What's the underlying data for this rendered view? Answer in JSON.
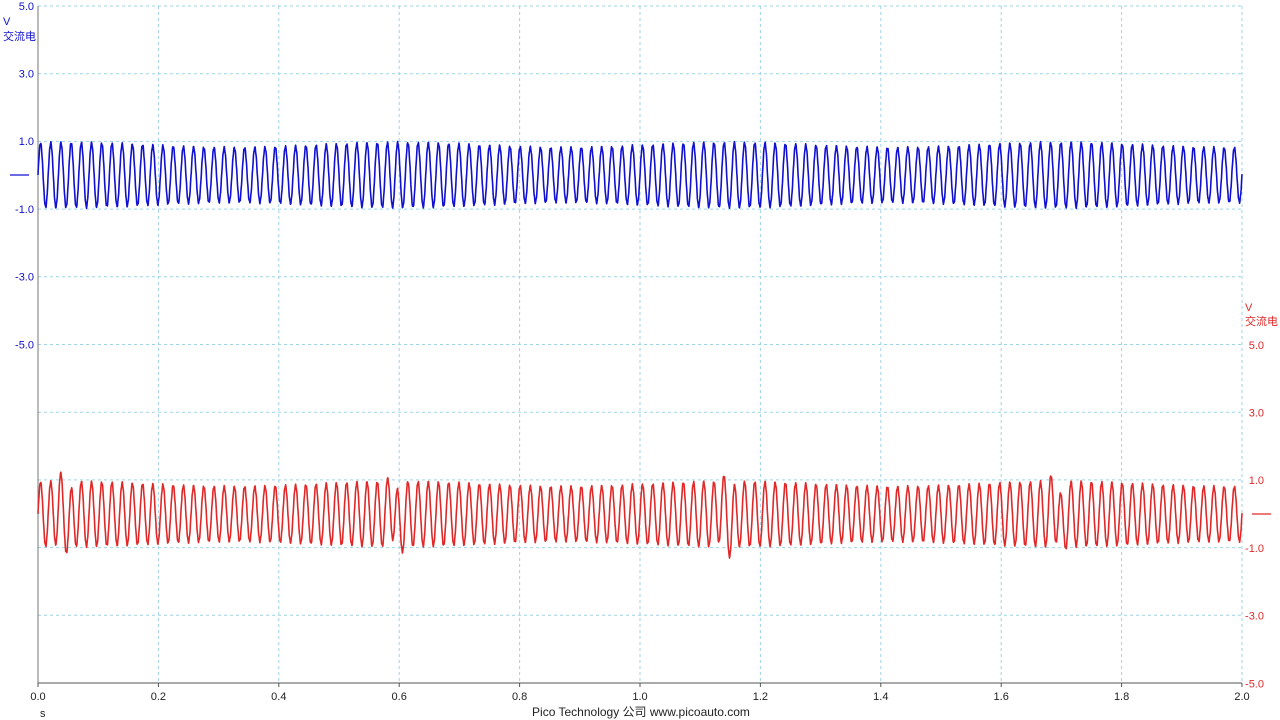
{
  "chart_data": {
    "type": "line",
    "title": "",
    "x_axis": {
      "unit_label": "s",
      "range": [
        0.0,
        2.0
      ],
      "ticks": [
        "0.0",
        "0.2",
        "0.4",
        "0.6",
        "0.8",
        "1.0",
        "1.2",
        "1.4",
        "1.6",
        "1.8",
        "2.0"
      ],
      "tick_values": [
        0.0,
        0.2,
        0.4,
        0.6,
        0.8,
        1.0,
        1.2,
        1.4,
        1.6,
        1.8,
        2.0
      ]
    },
    "channels": [
      {
        "name": "",
        "color": "#1010d0",
        "axis_side": "left",
        "unit": "V",
        "coupling": "交流电",
        "ylim": [
          -5.0,
          5.0
        ],
        "ticks": [
          "5.0",
          "3.0",
          "1.0",
          "-1.0",
          "-3.0",
          "-5.0"
        ],
        "tick_values": [
          5.0,
          3.0,
          1.0,
          -1.0,
          -3.0,
          -5.0
        ],
        "signal": {
          "shape": "sine",
          "frequency_hz": 59,
          "amplitude_v": [
            0.8,
            0.95
          ],
          "offset_v": 0.0,
          "beat_period_s": 0.55
        }
      },
      {
        "name": "",
        "color": "#e02828",
        "axis_side": "right",
        "unit": "V",
        "coupling": "交流电",
        "ylim": [
          -5.0,
          5.0
        ],
        "ticks": [
          "5.0",
          "3.0",
          "1.0",
          "-1.0",
          "-3.0",
          "-5.0"
        ],
        "tick_values": [
          5.0,
          3.0,
          1.0,
          -1.0,
          -3.0,
          -5.0
        ],
        "signal": {
          "shape": "sine",
          "frequency_hz": 59,
          "amplitude_v": [
            0.8,
            0.95
          ],
          "offset_v": 0.0,
          "beat_period_s": 0.55,
          "spike_times_s": [
            0.04,
            0.59,
            1.14,
            1.69
          ],
          "spike_peak_v": 1.25,
          "spike_trough_v": -1.35
        }
      }
    ],
    "grid": true,
    "grid_style": "dashed",
    "grid_color": "#9fd3e6"
  },
  "footer": "Pico Technology 公司   www.picoauto.com"
}
